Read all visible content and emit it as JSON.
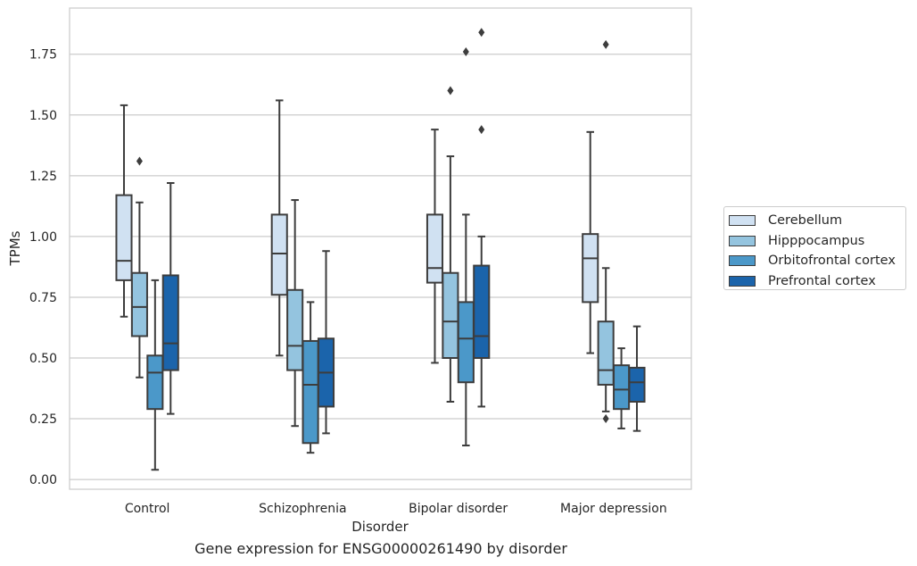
{
  "caption": "Gene expression for ENSG00000261490 by disorder",
  "chart_data": {
    "type": "box",
    "title": "",
    "xlabel": "Disorder",
    "ylabel": "TPMs",
    "categories": [
      "Control",
      "Schizophrenia",
      "Bipolar disorder",
      "Major depression"
    ],
    "ylim": [
      -0.04,
      1.94
    ],
    "yticks": [
      0.0,
      0.25,
      0.5,
      0.75,
      1.0,
      1.25,
      1.5,
      1.75
    ],
    "ytick_labels": [
      "0.00",
      "0.25",
      "0.50",
      "0.75",
      "1.00",
      "1.25",
      "1.50",
      "1.75"
    ],
    "grid": "horizontal",
    "legend_position": "right, outside plot",
    "series": [
      {
        "name": "Cerebellum",
        "color": "#d0e1f2",
        "boxes": [
          {
            "whisker_low": 0.67,
            "q1": 0.82,
            "median": 0.9,
            "q3": 1.17,
            "whisker_high": 1.54,
            "outliers": []
          },
          {
            "whisker_low": 0.51,
            "q1": 0.76,
            "median": 0.93,
            "q3": 1.09,
            "whisker_high": 1.56,
            "outliers": []
          },
          {
            "whisker_low": 0.48,
            "q1": 0.81,
            "median": 0.87,
            "q3": 1.09,
            "whisker_high": 1.44,
            "outliers": []
          },
          {
            "whisker_low": 0.52,
            "q1": 0.73,
            "median": 0.91,
            "q3": 1.01,
            "whisker_high": 1.43,
            "outliers": []
          }
        ]
      },
      {
        "name": "Hipppocampus",
        "color": "#94c4df",
        "boxes": [
          {
            "whisker_low": 0.42,
            "q1": 0.59,
            "median": 0.71,
            "q3": 0.85,
            "whisker_high": 1.14,
            "outliers": [
              1.31
            ]
          },
          {
            "whisker_low": 0.22,
            "q1": 0.45,
            "median": 0.55,
            "q3": 0.78,
            "whisker_high": 1.15,
            "outliers": []
          },
          {
            "whisker_low": 0.32,
            "q1": 0.5,
            "median": 0.65,
            "q3": 0.85,
            "whisker_high": 1.33,
            "outliers": [
              1.6
            ]
          },
          {
            "whisker_low": 0.28,
            "q1": 0.39,
            "median": 0.45,
            "q3": 0.65,
            "whisker_high": 0.87,
            "outliers": [
              0.25,
              1.79
            ]
          }
        ]
      },
      {
        "name": "Orbitofrontal cortex",
        "color": "#4b98c9",
        "boxes": [
          {
            "whisker_low": 0.04,
            "q1": 0.29,
            "median": 0.44,
            "q3": 0.51,
            "whisker_high": 0.82,
            "outliers": []
          },
          {
            "whisker_low": 0.11,
            "q1": 0.15,
            "median": 0.39,
            "q3": 0.57,
            "whisker_high": 0.73,
            "outliers": []
          },
          {
            "whisker_low": 0.14,
            "q1": 0.4,
            "median": 0.58,
            "q3": 0.73,
            "whisker_high": 1.09,
            "outliers": [
              1.76
            ]
          },
          {
            "whisker_low": 0.21,
            "q1": 0.29,
            "median": 0.37,
            "q3": 0.47,
            "whisker_high": 0.54,
            "outliers": []
          }
        ]
      },
      {
        "name": "Prefrontal cortex",
        "color": "#1b64ab",
        "boxes": [
          {
            "whisker_low": 0.27,
            "q1": 0.45,
            "median": 0.56,
            "q3": 0.84,
            "whisker_high": 1.22,
            "outliers": []
          },
          {
            "whisker_low": 0.19,
            "q1": 0.3,
            "median": 0.44,
            "q3": 0.58,
            "whisker_high": 0.94,
            "outliers": []
          },
          {
            "whisker_low": 0.3,
            "q1": 0.5,
            "median": 0.59,
            "q3": 0.88,
            "whisker_high": 1.0,
            "outliers": [
              1.44,
              1.84
            ]
          },
          {
            "whisker_low": 0.2,
            "q1": 0.32,
            "median": 0.4,
            "q3": 0.46,
            "whisker_high": 0.63,
            "outliers": []
          }
        ]
      }
    ]
  }
}
